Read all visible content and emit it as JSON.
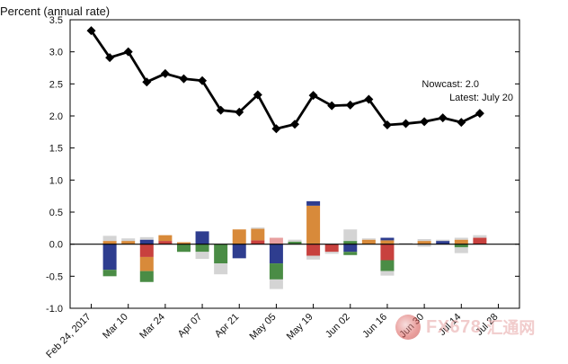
{
  "chart_data": {
    "type": "line",
    "title": "",
    "ylabel": "Percent (annual rate)",
    "xlabel": "",
    "ylim": [
      -1.0,
      3.5
    ],
    "yticks": [
      "-1.0",
      "-0.5",
      "0.0",
      "0.5",
      "1.0",
      "1.5",
      "2.0",
      "2.5",
      "3.0",
      "3.5"
    ],
    "grid": false,
    "x_tick_labels": [
      "Feb 24, 2017",
      "Mar 10",
      "Mar 24",
      "Apr 07",
      "Apr 21",
      "May 05",
      "May 19",
      "Jun 02",
      "Jun 16",
      "Jun 30",
      "Jul 14",
      "Jul 28"
    ],
    "dates": [
      "2017-02-24",
      "2017-03-03",
      "2017-03-10",
      "2017-03-17",
      "2017-03-24",
      "2017-03-31",
      "2017-04-07",
      "2017-04-14",
      "2017-04-21",
      "2017-04-28",
      "2017-05-05",
      "2017-05-12",
      "2017-05-19",
      "2017-05-26",
      "2017-06-02",
      "2017-06-09",
      "2017-06-16",
      "2017-06-23",
      "2017-06-30",
      "2017-07-07",
      "2017-07-14",
      "2017-07-21"
    ],
    "series": [
      {
        "values": [
          3.33,
          2.91,
          3.0,
          2.53,
          2.66,
          2.58,
          2.55,
          2.09,
          2.06,
          2.33,
          1.8,
          1.87,
          2.32,
          2.16,
          2.17,
          2.26,
          1.86,
          1.88,
          1.91,
          1.97,
          1.9,
          2.04
        ],
        "color": "#000000",
        "marker": "diamond"
      }
    ],
    "contributions": {
      "dates": [
        "2017-02-24",
        "2017-03-03",
        "2017-03-10",
        "2017-03-17",
        "2017-03-24",
        "2017-03-31",
        "2017-04-07",
        "2017-04-14",
        "2017-04-21",
        "2017-04-28",
        "2017-05-05",
        "2017-05-12",
        "2017-05-19",
        "2017-05-26",
        "2017-06-02",
        "2017-06-09",
        "2017-06-16",
        "2017-06-23",
        "2017-06-30",
        "2017-07-07",
        "2017-07-14",
        "2017-07-21"
      ],
      "stacks": [
        [],
        [
          {
            "color": "#2e3d8f",
            "value": -0.4
          },
          {
            "color": "#4a8c45",
            "value": -0.1
          },
          {
            "color": "#d88a3a",
            "value": 0.05
          },
          {
            "color": "#d4d4d4",
            "value": 0.08
          }
        ],
        [
          {
            "color": "#d88a3a",
            "value": 0.05
          },
          {
            "color": "#d4d4d4",
            "value": 0.04
          }
        ],
        [
          {
            "color": "#c8413e",
            "value": -0.2
          },
          {
            "color": "#d88a3a",
            "value": -0.22
          },
          {
            "color": "#4a8c45",
            "value": -0.17
          },
          {
            "color": "#2e3d8f",
            "value": 0.07
          },
          {
            "color": "#d4d4d4",
            "value": 0.04
          }
        ],
        [
          {
            "color": "#c8413e",
            "value": 0.05
          },
          {
            "color": "#d88a3a",
            "value": 0.09
          }
        ],
        [
          {
            "color": "#4a8c45",
            "value": -0.12
          },
          {
            "color": "#d88a3a",
            "value": 0.03
          }
        ],
        [
          {
            "color": "#2e3d8f",
            "value": 0.2
          },
          {
            "color": "#4a8c45",
            "value": -0.12
          },
          {
            "color": "#d4d4d4",
            "value": -0.11
          }
        ],
        [
          {
            "color": "#4a8c45",
            "value": -0.3
          },
          {
            "color": "#d4d4d4",
            "value": -0.17
          }
        ],
        [
          {
            "color": "#2e3d8f",
            "value": -0.22
          },
          {
            "color": "#d88a3a",
            "value": 0.23
          }
        ],
        [
          {
            "color": "#c8413e",
            "value": 0.06
          },
          {
            "color": "#d88a3a",
            "value": 0.18
          },
          {
            "color": "#d4d4d4",
            "value": 0.02
          }
        ],
        [
          {
            "color": "#2e3d8f",
            "value": -0.3
          },
          {
            "color": "#4a8c45",
            "value": -0.25
          },
          {
            "color": "#e8a0a0",
            "value": 0.1
          },
          {
            "color": "#d4d4d4",
            "value": -0.15
          }
        ],
        [
          {
            "color": "#4a8c45",
            "value": 0.04
          },
          {
            "color": "#d4d4d4",
            "value": 0.03
          }
        ],
        [
          {
            "color": "#c8413e",
            "value": -0.18
          },
          {
            "color": "#d88a3a",
            "value": 0.6
          },
          {
            "color": "#2e3d8f",
            "value": 0.07
          },
          {
            "color": "#d4d4d4",
            "value": -0.06
          }
        ],
        [
          {
            "color": "#c8413e",
            "value": -0.12
          },
          {
            "color": "#d4d4d4",
            "value": -0.03
          }
        ],
        [
          {
            "color": "#2e3d8f",
            "value": -0.12
          },
          {
            "color": "#4a8c45",
            "value": 0.05
          },
          {
            "color": "#d4d4d4",
            "value": 0.18
          },
          {
            "color": "#4a8c45",
            "value": -0.05
          }
        ],
        [
          {
            "color": "#d88a3a",
            "value": 0.07
          },
          {
            "color": "#d4d4d4",
            "value": 0.02
          }
        ],
        [
          {
            "color": "#c8413e",
            "value": -0.25
          },
          {
            "color": "#4a8c45",
            "value": -0.17
          },
          {
            "color": "#d88a3a",
            "value": 0.06
          },
          {
            "color": "#2e3d8f",
            "value": 0.04
          },
          {
            "color": "#d4d4d4",
            "value": -0.07
          }
        ],
        [
          {
            "color": "#d4d4d4",
            "value": 0.02
          }
        ],
        [
          {
            "color": "#d88a3a",
            "value": 0.05
          },
          {
            "color": "#d4d4d4",
            "value": 0.03
          },
          {
            "color": "#d4d4d4",
            "value": -0.04
          }
        ],
        [
          {
            "color": "#2e3d8f",
            "value": 0.05
          },
          {
            "color": "#d4d4d4",
            "value": 0.02
          }
        ],
        [
          {
            "color": "#d88a3a",
            "value": 0.07
          },
          {
            "color": "#d4d4d4",
            "value": 0.03
          },
          {
            "color": "#4a8c45",
            "value": -0.05
          },
          {
            "color": "#d4d4d4",
            "value": -0.09
          }
        ],
        [
          {
            "color": "#c8413e",
            "value": 0.1
          },
          {
            "color": "#d4d4d4",
            "value": 0.04
          }
        ]
      ]
    },
    "annotations": [
      "Nowcast:  2.0",
      "Latest: July 20"
    ]
  },
  "watermark": {
    "text_1": "FX678",
    "text_2": "汇通网"
  }
}
